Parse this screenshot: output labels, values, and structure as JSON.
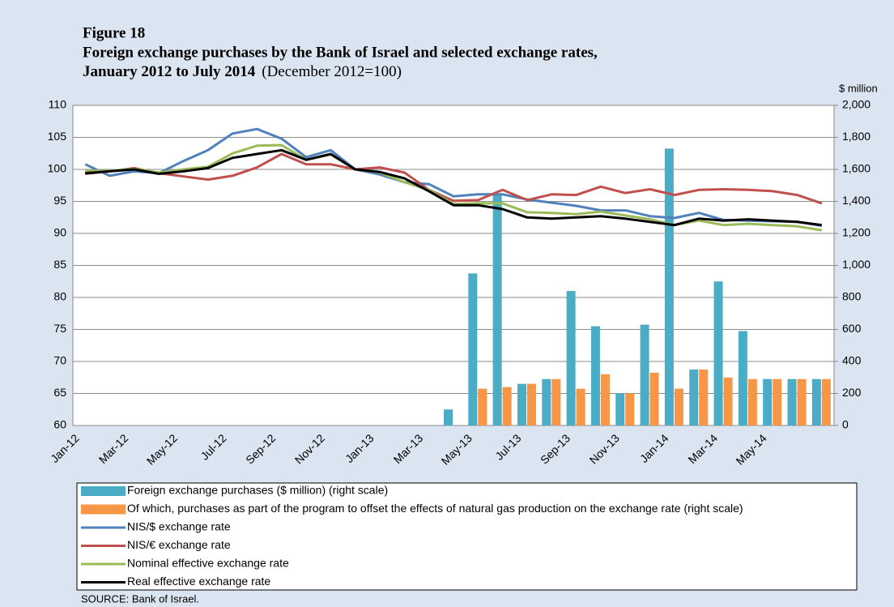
{
  "chart_data": {
    "type": "bar_line",
    "title": [
      "Figure 18",
      "Foreign exchange purchases by the Bank of Israel and selected exchange rates,",
      "January 2012 to July 2014"
    ],
    "subtitle": "(December 2012=100)",
    "y2_label": "$ million",
    "source": "SOURCE: Bank of Israel.",
    "categories": [
      "Jan-12",
      null,
      "Mar-12",
      null,
      "May-12",
      null,
      "Jul-12",
      null,
      "Sep-12",
      null,
      "Nov-12",
      null,
      "Jan-13",
      null,
      "Mar-13",
      null,
      "May-13",
      null,
      "Jul-13",
      null,
      "Sep-13",
      null,
      "Nov-13",
      null,
      "Jan-14",
      null,
      "Mar-14",
      null,
      "May-14",
      null,
      null
    ],
    "ylim": [
      60,
      110
    ],
    "yticks": [
      60,
      65,
      70,
      75,
      80,
      85,
      90,
      95,
      100,
      105,
      110
    ],
    "y2lim": [
      0,
      2000
    ],
    "y2ticks": [
      0,
      200,
      400,
      600,
      800,
      {
        "value": 1000,
        "label": "1,000"
      },
      {
        "value": 1200,
        "label": "1,200"
      },
      {
        "value": 1400,
        "label": "1,400"
      },
      {
        "value": 1600,
        "label": "1,600"
      },
      {
        "value": 1800,
        "label": "1,800"
      },
      {
        "value": 2000,
        "label": "2,000"
      }
    ],
    "grid": true,
    "legend": "bottom",
    "series": [
      {
        "name": "Foreign exchange purchases ($ million) (right scale)",
        "type": "bar",
        "axis": "y2",
        "color": "#4bacc6",
        "values": [
          0,
          0,
          0,
          0,
          0,
          0,
          0,
          0,
          0,
          0,
          0,
          0,
          0,
          0,
          0,
          100,
          950,
          1450,
          260,
          290,
          840,
          620,
          200,
          630,
          1730,
          350,
          900,
          590,
          290,
          290,
          290
        ]
      },
      {
        "name": "Of which, purchases as part of the program to offset the effects of natural gas production on the exchange rate (right scale)",
        "type": "bar",
        "axis": "y2",
        "color": "#f79646",
        "values": [
          0,
          0,
          0,
          0,
          0,
          0,
          0,
          0,
          0,
          0,
          0,
          0,
          0,
          0,
          0,
          0,
          230,
          240,
          260,
          290,
          230,
          320,
          200,
          330,
          230,
          350,
          300,
          290,
          290,
          290,
          290
        ]
      },
      {
        "name": "NIS/$ exchange rate",
        "type": "line",
        "color": "#4f81bd",
        "values": [
          100.8,
          99.0,
          99.7,
          99.4,
          101.3,
          103.0,
          105.6,
          106.3,
          104.8,
          101.9,
          103.0,
          100.0,
          99.2,
          98.0,
          97.7,
          95.8,
          96.1,
          96.1,
          95.3,
          94.8,
          94.3,
          93.6,
          93.6,
          92.7,
          92.4,
          93.2,
          92.1,
          92.0,
          91.9,
          91.8,
          91.2
        ]
      },
      {
        "name": "NIS/€ exchange rate",
        "type": "line",
        "color": "#c0504d",
        "values": [
          99.3,
          99.7,
          100.2,
          99.4,
          98.9,
          98.4,
          99.0,
          100.3,
          102.4,
          100.8,
          100.8,
          100.0,
          100.3,
          99.5,
          96.8,
          95.1,
          95.2,
          96.8,
          95.2,
          96.1,
          96.0,
          97.3,
          96.3,
          96.9,
          96.0,
          96.8,
          96.9,
          96.8,
          96.6,
          96.0,
          94.7
        ]
      },
      {
        "name": "Nominal effective exchange rate",
        "type": "line",
        "color": "#9bbb59",
        "values": [
          99.8,
          99.8,
          100.1,
          99.5,
          100.0,
          100.4,
          102.5,
          103.7,
          103.8,
          101.5,
          102.3,
          100.0,
          99.5,
          98.0,
          96.8,
          94.6,
          94.7,
          94.7,
          93.3,
          93.2,
          93.0,
          93.4,
          92.8,
          92.2,
          91.3,
          92.0,
          91.3,
          91.5,
          91.3,
          91.1,
          90.5
        ]
      },
      {
        "name": "Real effective exchange rate",
        "type": "line",
        "color": "#000000",
        "values": [
          99.4,
          99.7,
          100.0,
          99.3,
          99.7,
          100.2,
          101.8,
          102.4,
          103.0,
          101.5,
          102.4,
          100.0,
          99.6,
          98.6,
          96.6,
          94.4,
          94.4,
          93.8,
          92.5,
          92.3,
          92.5,
          92.7,
          92.3,
          91.8,
          91.3,
          92.3,
          92.0,
          92.2,
          92.0,
          91.8,
          91.3
        ]
      }
    ]
  }
}
